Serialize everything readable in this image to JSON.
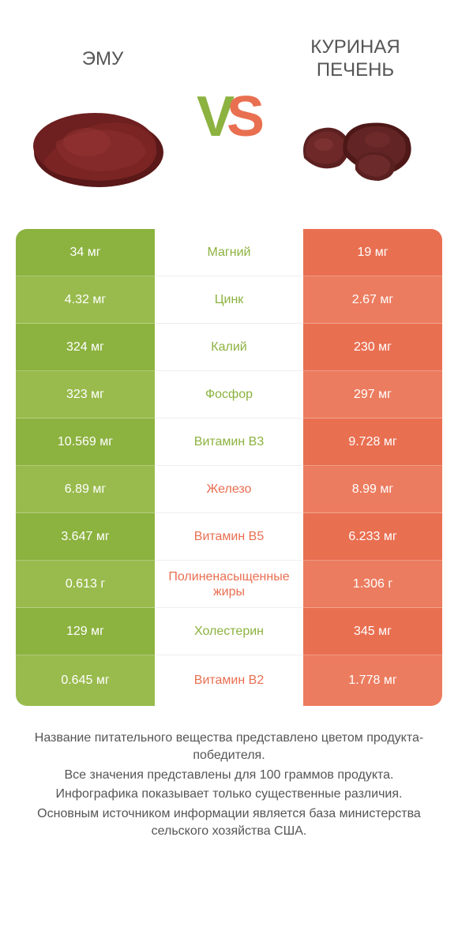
{
  "colors": {
    "green": "#8cb23f",
    "green_alt": "#99bb4d",
    "orange": "#e96f51",
    "orange_alt": "#ec7c5f",
    "text_gray": "#555555",
    "bg": "#ffffff"
  },
  "header": {
    "left_title": "ЭМУ",
    "right_title": "КУРИНАЯ ПЕЧЕНЬ",
    "vs": "VS"
  },
  "comparison": {
    "type": "nutrient_table",
    "rows": [
      {
        "nutrient": "Магний",
        "left": "34 мг",
        "right": "19 мг",
        "winner": "left"
      },
      {
        "nutrient": "Цинк",
        "left": "4.32 мг",
        "right": "2.67 мг",
        "winner": "left"
      },
      {
        "nutrient": "Калий",
        "left": "324 мг",
        "right": "230 мг",
        "winner": "left"
      },
      {
        "nutrient": "Фосфор",
        "left": "323 мг",
        "right": "297 мг",
        "winner": "left"
      },
      {
        "nutrient": "Витамин B3",
        "left": "10.569 мг",
        "right": "9.728 мг",
        "winner": "left"
      },
      {
        "nutrient": "Железо",
        "left": "6.89 мг",
        "right": "8.99 мг",
        "winner": "right"
      },
      {
        "nutrient": "Витамин B5",
        "left": "3.647 мг",
        "right": "6.233 мг",
        "winner": "right"
      },
      {
        "nutrient": "Полиненасыщенные жиры",
        "left": "0.613 г",
        "right": "1.306 г",
        "winner": "right"
      },
      {
        "nutrient": "Холестерин",
        "left": "129 мг",
        "right": "345 мг",
        "winner": "left"
      },
      {
        "nutrient": "Витамин B2",
        "left": "0.645 мг",
        "right": "1.778 мг",
        "winner": "right"
      }
    ]
  },
  "footer": {
    "line1": "Название питательного вещества представлено цветом продукта-победителя.",
    "line2": "Все значения представлены для 100 граммов продукта.",
    "line3": "Инфографика показывает только существенные различия.",
    "line4": "Основным источником информации является база министерства сельского хозяйства США."
  }
}
